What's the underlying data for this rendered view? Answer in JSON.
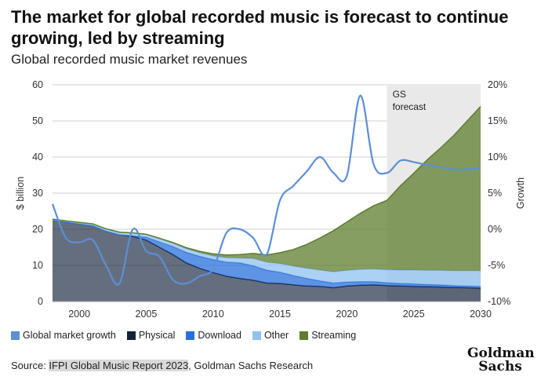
{
  "header": {
    "title": "The market for global recorded music is forecast to continue growing, led by streaming",
    "subtitle": "Global recorded music market revenues"
  },
  "legend": [
    {
      "label": "Global market growth",
      "color": "#5b8fd6"
    },
    {
      "label": "Physical",
      "color": "#13213a"
    },
    {
      "label": "Download",
      "color": "#2a6fdb"
    },
    {
      "label": "Other",
      "color": "#8fc1f2"
    },
    {
      "label": "Streaming",
      "color": "#5e7d2e"
    }
  ],
  "footer": {
    "source_prefix": "Source: ",
    "source_highlight": "IFPI Global Music Report 2023",
    "source_suffix": ", Goldman Sachs Research",
    "logo_line1": "Goldman",
    "logo_line2": "Sachs"
  },
  "chart_data": {
    "type": "area",
    "title": "The market for global recorded music is forecast to continue growing, led by streaming",
    "subtitle": "Global recorded music market revenues",
    "ylabel": "$ billion",
    "y2label": "Growth",
    "ylim": [
      0,
      60
    ],
    "y2lim": [
      -10,
      20
    ],
    "xlim": [
      1998,
      2030
    ],
    "xticks": [
      2000,
      2005,
      2010,
      2015,
      2020,
      2025,
      2030
    ],
    "yticks": [
      0,
      10,
      20,
      30,
      40,
      50,
      60
    ],
    "y2ticks": [
      -10,
      -5,
      0,
      5,
      10,
      15,
      20
    ],
    "y2ticklabels": [
      "-10%",
      "-5%",
      "0%",
      "5%",
      "10%",
      "15%",
      "20%"
    ],
    "forecast_start": 2023,
    "forecast_label": "GS forecast",
    "x": [
      1998,
      1999,
      2000,
      2001,
      2002,
      2003,
      2004,
      2005,
      2006,
      2007,
      2008,
      2009,
      2010,
      2011,
      2012,
      2013,
      2014,
      2015,
      2016,
      2017,
      2018,
      2019,
      2020,
      2021,
      2022,
      2023,
      2024,
      2025,
      2026,
      2027,
      2028,
      2029,
      2030
    ],
    "stacked_series": [
      {
        "name": "Physical",
        "color": "#13213a",
        "values": [
          22.5,
          22,
          21.5,
          21,
          19.5,
          18.5,
          18,
          17,
          15,
          13,
          10.7,
          9.2,
          8,
          7,
          6.4,
          5.9,
          5.1,
          5,
          4.6,
          4.3,
          4.2,
          3.8,
          4.3,
          4.5,
          4.6,
          4.4,
          4.3,
          4.2,
          4.1,
          4.0,
          3.9,
          3.8,
          3.7
        ]
      },
      {
        "name": "Download",
        "color": "#2a6fdb",
        "values": [
          0,
          0,
          0,
          0,
          0,
          0,
          0.2,
          0.8,
          1.5,
          2.2,
          2.9,
          3.3,
          3.6,
          3.9,
          4.3,
          4.0,
          3.6,
          3.1,
          2.6,
          2.1,
          1.5,
          1.3,
          1.1,
          1.0,
          0.9,
          0.8,
          0.7,
          0.7,
          0.6,
          0.6,
          0.5,
          0.5,
          0.5
        ]
      },
      {
        "name": "Other",
        "color": "#8fc1f2",
        "values": [
          0.3,
          0.3,
          0.4,
          0.5,
          0.6,
          0.7,
          0.8,
          0.8,
          0.9,
          0.9,
          1.0,
          1.0,
          1.0,
          1.2,
          1.3,
          2.0,
          2.2,
          2.4,
          2.6,
          2.8,
          3.0,
          3.1,
          3.2,
          3.4,
          3.5,
          3.6,
          3.7,
          3.8,
          3.9,
          4.0,
          4.1,
          4.2,
          4.3
        ]
      },
      {
        "name": "Streaming",
        "color": "#5e7d2e",
        "values": [
          0,
          0,
          0,
          0,
          0,
          0,
          0,
          0,
          0.1,
          0.2,
          0.3,
          0.4,
          0.6,
          0.8,
          1.0,
          1.4,
          2.0,
          3.0,
          4.6,
          6.6,
          8.9,
          11.4,
          13.4,
          15.5,
          17.5,
          19.2,
          23.3,
          26.8,
          30.6,
          33.9,
          37.5,
          41.5,
          45.5
        ]
      }
    ],
    "line_series": {
      "name": "Global market growth",
      "color": "#5b8fd6",
      "axis": "right",
      "values": [
        3.5,
        -1.2,
        -1.8,
        -1.5,
        -5,
        -7.5,
        0,
        -3,
        -3.8,
        -7,
        -7.5,
        -6.5,
        -5.5,
        -0.5,
        0,
        -1.2,
        -3.5,
        4,
        6,
        8,
        10,
        7.8,
        7.4,
        18.5,
        9,
        7.8,
        9.5,
        9.3,
        8.9,
        8.6,
        8.3,
        8.3,
        8.5
      ]
    }
  }
}
